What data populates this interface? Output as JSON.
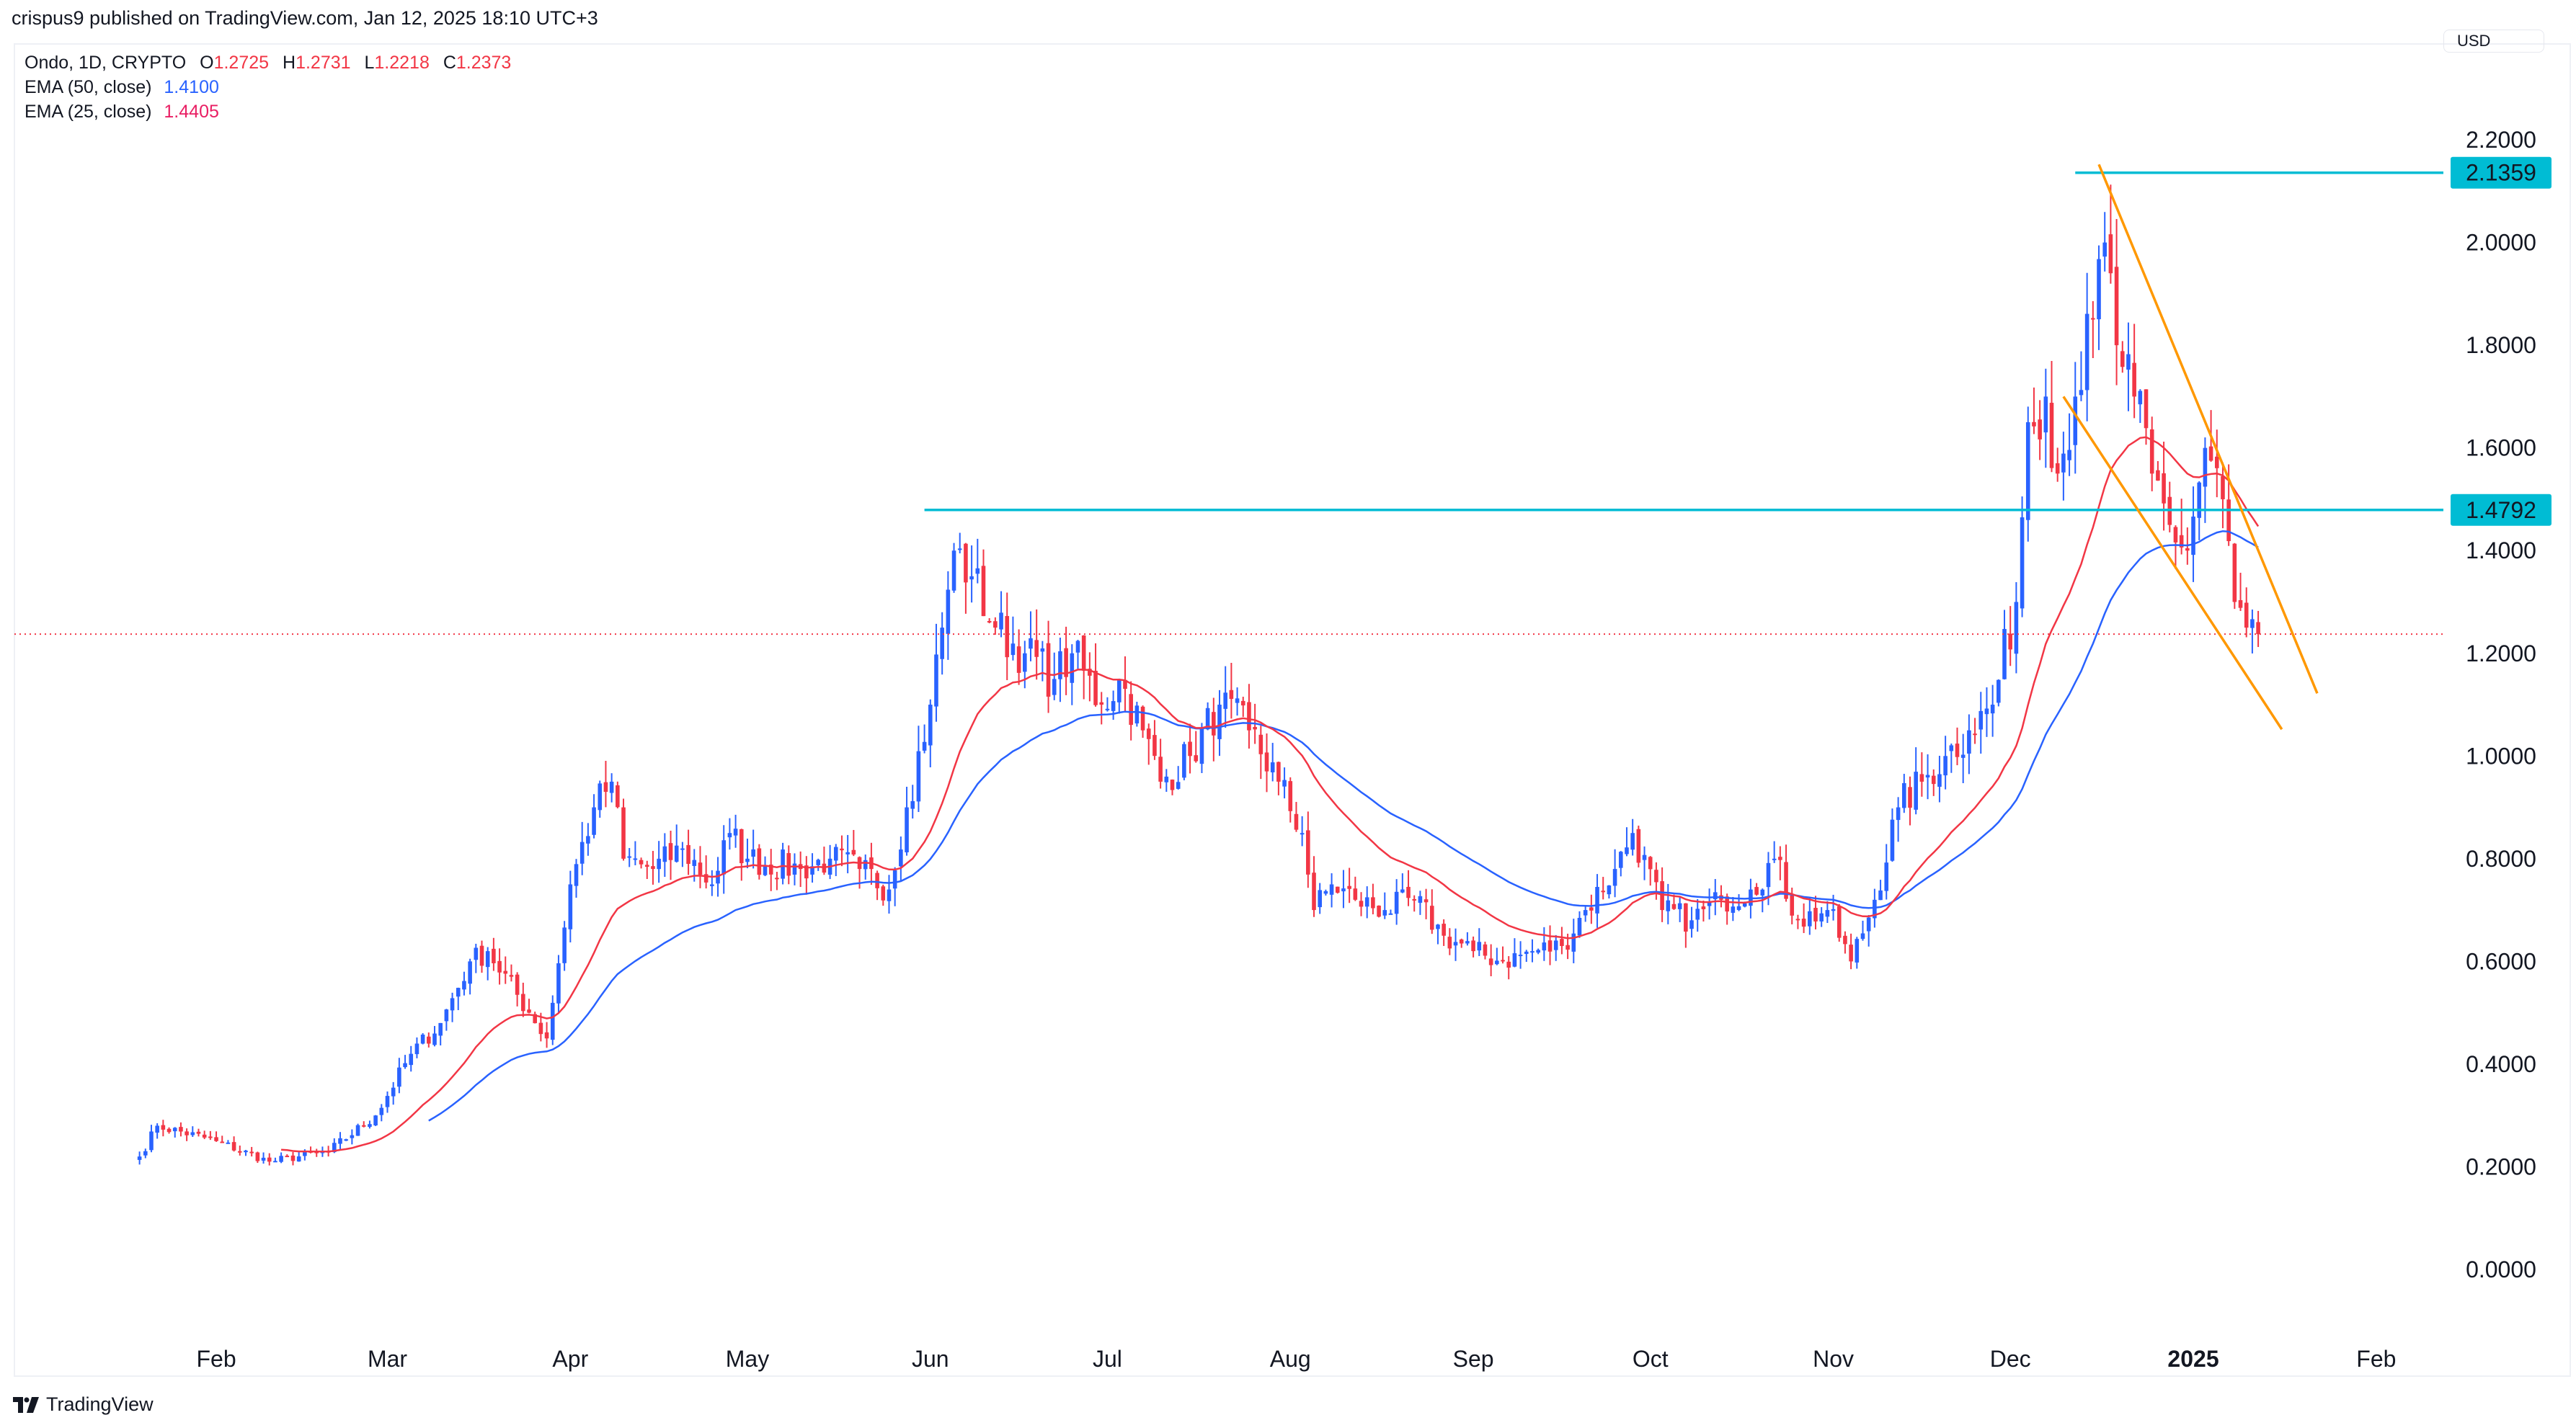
{
  "published": "crispus9 published on TradingView.com, Jan 12, 2025 18:10 UTC+3",
  "legend": {
    "symbol": "Ondo, 1D, CRYPTO",
    "o_label": "O",
    "open": "1.2725",
    "h_label": "H",
    "high": "1.2731",
    "l_label": "L",
    "low": "1.2218",
    "c_label": "C",
    "close": "1.2373",
    "ema50_label": "EMA (50, close)",
    "ema50_value": "1.4100",
    "ema25_label": "EMA (25, close)",
    "ema25_value": "1.4405"
  },
  "currency": "USD",
  "brand": "TradingView",
  "colors": {
    "up": "#2962ff",
    "down": "#f23645",
    "ema50": "#2962ff",
    "ema25": "#f23645",
    "level": "#00bcd4",
    "wedge": "#ff9800"
  },
  "chart_data": {
    "type": "candlestick",
    "title": "Ondo, 1D, CRYPTO",
    "start_date": "2024-01-19",
    "ylim": [
      -0.05,
      2.3
    ],
    "y_ticks": [
      "0.0000",
      "0.2000",
      "0.4000",
      "0.6000",
      "0.8000",
      "1.0000",
      "1.2000",
      "1.4000",
      "1.6000",
      "1.8000",
      "2.0000",
      "2.2000"
    ],
    "x_ticks": [
      {
        "label": "Feb",
        "date": "2024-02-01"
      },
      {
        "label": "Mar",
        "date": "2024-03-01"
      },
      {
        "label": "Apr",
        "date": "2024-04-01"
      },
      {
        "label": "May",
        "date": "2024-05-01"
      },
      {
        "label": "Jun",
        "date": "2024-06-01"
      },
      {
        "label": "Jul",
        "date": "2024-07-01"
      },
      {
        "label": "Aug",
        "date": "2024-08-01"
      },
      {
        "label": "Sep",
        "date": "2024-09-01"
      },
      {
        "label": "Oct",
        "date": "2024-10-01"
      },
      {
        "label": "Nov",
        "date": "2024-11-01"
      },
      {
        "label": "Dec",
        "date": "2024-12-01"
      },
      {
        "label": "2025",
        "date": "2025-01-01"
      },
      {
        "label": "Feb",
        "date": "2025-02-01"
      }
    ],
    "close_anchors": [
      [
        "2024-01-19",
        0.22
      ],
      [
        "2024-01-22",
        0.28
      ],
      [
        "2024-02-01",
        0.25
      ],
      [
        "2024-02-10",
        0.21
      ],
      [
        "2024-02-20",
        0.23
      ],
      [
        "2024-02-28",
        0.3
      ],
      [
        "2024-03-05",
        0.42
      ],
      [
        "2024-03-10",
        0.48
      ],
      [
        "2024-03-15",
        0.6
      ],
      [
        "2024-03-18",
        0.62
      ],
      [
        "2024-03-25",
        0.5
      ],
      [
        "2024-03-28",
        0.45
      ],
      [
        "2024-04-01",
        0.75
      ],
      [
        "2024-04-05",
        0.9
      ],
      [
        "2024-04-08",
        0.95
      ],
      [
        "2024-04-10",
        0.8
      ],
      [
        "2024-04-15",
        0.78
      ],
      [
        "2024-04-20",
        0.82
      ],
      [
        "2024-04-25",
        0.75
      ],
      [
        "2024-04-28",
        0.85
      ],
      [
        "2024-05-01",
        0.8
      ],
      [
        "2024-05-10",
        0.78
      ],
      [
        "2024-05-15",
        0.8
      ],
      [
        "2024-05-20",
        0.78
      ],
      [
        "2024-05-25",
        0.74
      ],
      [
        "2024-05-28",
        0.9
      ],
      [
        "2024-06-01",
        1.1
      ],
      [
        "2024-06-03",
        1.25
      ],
      [
        "2024-06-05",
        1.4
      ],
      [
        "2024-06-08",
        1.35
      ],
      [
        "2024-06-12",
        1.25
      ],
      [
        "2024-06-17",
        1.2
      ],
      [
        "2024-06-22",
        1.15
      ],
      [
        "2024-06-25",
        1.2
      ],
      [
        "2024-06-30",
        1.1
      ],
      [
        "2024-07-03",
        1.15
      ],
      [
        "2024-07-07",
        1.05
      ],
      [
        "2024-07-10",
        0.95
      ],
      [
        "2024-07-15",
        1.0
      ],
      [
        "2024-07-20",
        1.1
      ],
      [
        "2024-07-25",
        1.05
      ],
      [
        "2024-07-30",
        0.95
      ],
      [
        "2024-08-03",
        0.85
      ],
      [
        "2024-08-05",
        0.7
      ],
      [
        "2024-08-08",
        0.75
      ],
      [
        "2024-08-12",
        0.72
      ],
      [
        "2024-08-17",
        0.7
      ],
      [
        "2024-08-22",
        0.72
      ],
      [
        "2024-08-27",
        0.65
      ],
      [
        "2024-09-01",
        0.62
      ],
      [
        "2024-09-06",
        0.6
      ],
      [
        "2024-09-11",
        0.62
      ],
      [
        "2024-09-16",
        0.63
      ],
      [
        "2024-09-20",
        0.7
      ],
      [
        "2024-09-25",
        0.78
      ],
      [
        "2024-09-28",
        0.85
      ],
      [
        "2024-10-03",
        0.7
      ],
      [
        "2024-10-08",
        0.68
      ],
      [
        "2024-10-13",
        0.72
      ],
      [
        "2024-10-18",
        0.74
      ],
      [
        "2024-10-22",
        0.8
      ],
      [
        "2024-10-26",
        0.68
      ],
      [
        "2024-10-31",
        0.7
      ],
      [
        "2024-11-04",
        0.6
      ],
      [
        "2024-11-08",
        0.72
      ],
      [
        "2024-11-12",
        0.9
      ],
      [
        "2024-11-16",
        0.95
      ],
      [
        "2024-11-20",
        1.0
      ],
      [
        "2024-11-24",
        1.05
      ],
      [
        "2024-11-28",
        1.1
      ],
      [
        "2024-12-02",
        1.3
      ],
      [
        "2024-12-04",
        1.65
      ],
      [
        "2024-12-07",
        1.7
      ],
      [
        "2024-12-09",
        1.55
      ],
      [
        "2024-12-12",
        1.7
      ],
      [
        "2024-12-15",
        1.85
      ],
      [
        "2024-12-17",
        2.0
      ],
      [
        "2024-12-19",
        1.8
      ],
      [
        "2024-12-22",
        1.7
      ],
      [
        "2024-12-25",
        1.55
      ],
      [
        "2024-12-28",
        1.45
      ],
      [
        "2024-12-31",
        1.4
      ],
      [
        "2025-01-03",
        1.6
      ],
      [
        "2025-01-06",
        1.5
      ],
      [
        "2025-01-08",
        1.3
      ],
      [
        "2025-01-10",
        1.25
      ],
      [
        "2025-01-12",
        1.2373
      ]
    ],
    "last_price": 1.2373,
    "ema_periods": [
      50,
      25
    ],
    "levels": [
      {
        "label": "2.1359",
        "price": 2.1359,
        "from": "2024-12-12"
      },
      {
        "label": "1.4792",
        "price": 1.4792,
        "from": "2024-05-31"
      }
    ],
    "wedge_lines": [
      {
        "from": [
          "2024-12-16",
          2.152
        ],
        "to": [
          "2025-01-22",
          1.122
        ]
      },
      {
        "from": [
          "2024-12-10",
          1.7
        ],
        "to": [
          "2025-01-16",
          1.052
        ]
      }
    ]
  }
}
